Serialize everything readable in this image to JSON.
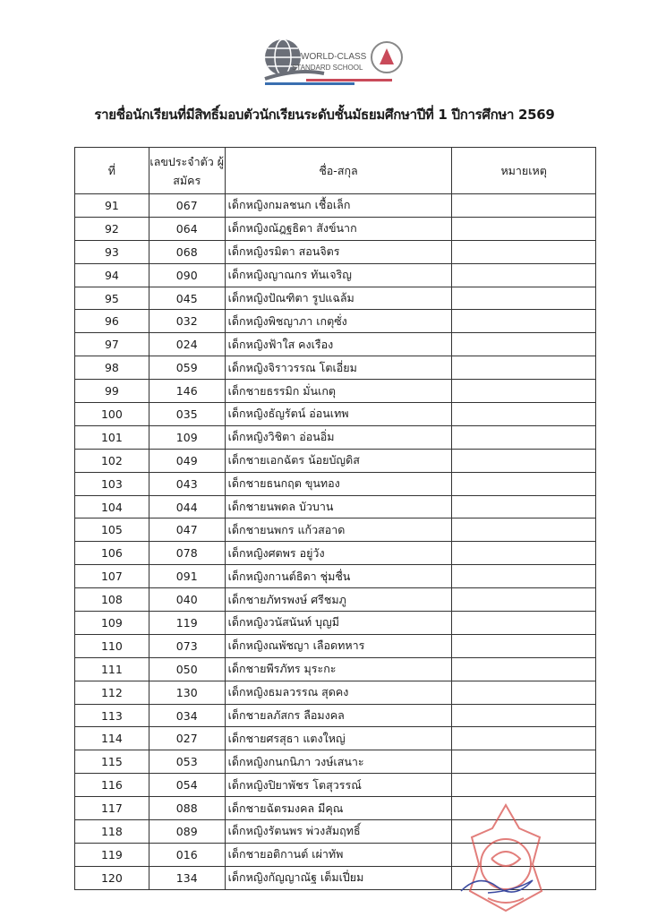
{
  "header": {
    "logo_text_1": "WORLD-CLASS",
    "logo_text_2": "STANDARD SCHOOL",
    "title": "รายชื่อนักเรียนที่มีสิทธิ์มอบตัวนักเรียนระดับชั้นมัธยมศึกษาปีที่ 1  ปีการศึกษา 2569"
  },
  "table": {
    "columns": [
      "ที่",
      "เลขประจำตัว ผู้สมัคร",
      "ชื่อ-สกุล",
      "หมายเหตุ"
    ],
    "rows": [
      {
        "no": "91",
        "id": "067",
        "name": "เด็กหญิงกมลชนก เชื้อเล็ก",
        "note": ""
      },
      {
        "no": "92",
        "id": "064",
        "name": "เด็กหญิงณัฎฐธิดา  สังข์นาก",
        "note": ""
      },
      {
        "no": "93",
        "id": "068",
        "name": "เด็กหญิงรมิตา สอนจิตร",
        "note": ""
      },
      {
        "no": "94",
        "id": "090",
        "name": "เด็กหญิงญาณกร ทันเจริญ",
        "note": ""
      },
      {
        "no": "95",
        "id": "045",
        "name": "เด็กหญิงปัณฑิตา  รูปแฉล้ม",
        "note": ""
      },
      {
        "no": "96",
        "id": "032",
        "name": "เด็กหญิงพิชญาภา  เกตุซั่ง",
        "note": ""
      },
      {
        "no": "97",
        "id": "024",
        "name": "เด็กหญิงฟ้าใส  คงเรือง",
        "note": ""
      },
      {
        "no": "98",
        "id": "059",
        "name": "เด็กหญิงจิราวรรณ  โตเอี่ยม",
        "note": ""
      },
      {
        "no": "99",
        "id": "146",
        "name": "เด็กชายธรรมิก  มั่นเกตุ",
        "note": ""
      },
      {
        "no": "100",
        "id": "035",
        "name": "เด็กหญิงธัญรัตน์  อ่อนเทพ",
        "note": ""
      },
      {
        "no": "101",
        "id": "109",
        "name": "เด็กหญิงวิชิตา อ่อนอิ่ม",
        "note": ""
      },
      {
        "no": "102",
        "id": "049",
        "name": "เด็กชายเอกฉัตร  น้อยบัญดิส",
        "note": ""
      },
      {
        "no": "103",
        "id": "043",
        "name": "เด็กชายธนกฤต  ขุนทอง",
        "note": ""
      },
      {
        "no": "104",
        "id": "044",
        "name": "เด็กชายนพดล  บัวบาน",
        "note": ""
      },
      {
        "no": "105",
        "id": "047",
        "name": "เด็กชายนพกร  แก้วสอาด",
        "note": ""
      },
      {
        "no": "106",
        "id": "078",
        "name": "เด็กหญิงศตพร  อยู่วัง",
        "note": ""
      },
      {
        "no": "107",
        "id": "091",
        "name": "เด็กหญิงกานต์ธิดา ชุ่มชื่น",
        "note": ""
      },
      {
        "no": "108",
        "id": "040",
        "name": "เด็กชายภัทรพงษ์  ศรีชมภู",
        "note": ""
      },
      {
        "no": "109",
        "id": "119",
        "name": "เด็กหญิงวนัสนันท์  บุญมี",
        "note": ""
      },
      {
        "no": "110",
        "id": "073",
        "name": "เด็กหญิงณพัชญา เลือดทหาร",
        "note": ""
      },
      {
        "no": "111",
        "id": "050",
        "name": "เด็กชายพีรภัทร  มุระกะ",
        "note": ""
      },
      {
        "no": "112",
        "id": "130",
        "name": "เด็กหญิงธมลวรรณ  สุดคง",
        "note": ""
      },
      {
        "no": "113",
        "id": "034",
        "name": "เด็กชายลภัสกร  ลือมงคล",
        "note": ""
      },
      {
        "no": "114",
        "id": "027",
        "name": "เด็กชายศรสุธา แตงใหญ่",
        "note": ""
      },
      {
        "no": "115",
        "id": "053",
        "name": "เด็กหญิงกนกนิภา  วงษ์เสนาะ",
        "note": ""
      },
      {
        "no": "116",
        "id": "054",
        "name": "เด็กหญิงปิยาพัชร  โตสุวรรณ์",
        "note": ""
      },
      {
        "no": "117",
        "id": "088",
        "name": "เด็กชายฉัตรมงคล มีคุณ",
        "note": ""
      },
      {
        "no": "118",
        "id": "089",
        "name": "เด็กหญิงรัตนพร พ่วงสัมฤทธิ์",
        "note": ""
      },
      {
        "no": "119",
        "id": "016",
        "name": "เด็กชายอติกานต์ เผ่าทัพ",
        "note": ""
      },
      {
        "no": "120",
        "id": "134",
        "name": "เด็กหญิงกัญญาณัฐ  เต็มเปี่ยม",
        "note": ""
      }
    ]
  },
  "colors": {
    "seal": "#d9534f",
    "logo_blue": "#3a6fb0",
    "logo_red": "#c94a5a",
    "logo_gray": "#6b6f78"
  }
}
